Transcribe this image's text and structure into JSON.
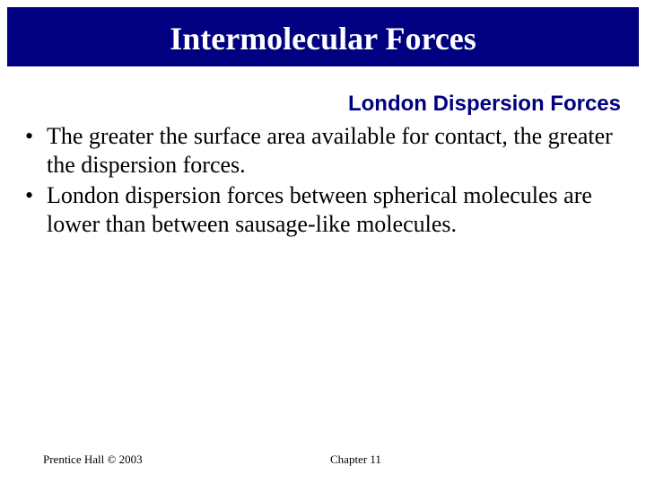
{
  "title": "Intermolecular Forces",
  "subtitle": "London Dispersion Forces",
  "bullets": [
    "The greater the surface area available for contact, the greater the dispersion forces.",
    "London dispersion forces between spherical molecules are lower than between sausage-like molecules."
  ],
  "footer": {
    "left": "Prentice Hall © 2003",
    "center": "Chapter 11"
  },
  "colors": {
    "title_bg": "#000080",
    "title_text": "#ffffff",
    "subtitle_text": "#000080",
    "body_text": "#000000",
    "page_bg": "#ffffff"
  }
}
